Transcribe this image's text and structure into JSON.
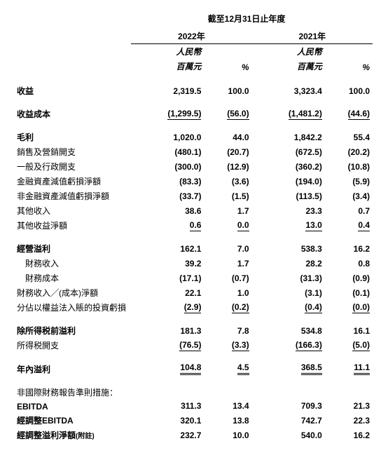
{
  "header": {
    "period_title": "截至12月31日止年度",
    "years": [
      "2022年",
      "2021年"
    ],
    "unit_currency": "人民幣",
    "unit_amount": "百萬元",
    "pct_symbol": "%"
  },
  "rows": [
    {
      "type": "data",
      "label": "收益",
      "bold": true,
      "v1": "2,319.5",
      "p1": "100.0",
      "v2": "3,323.4",
      "p2": "100.0",
      "bottomGap": true
    },
    {
      "type": "data",
      "label": "收益成本",
      "bold": true,
      "v1": "(1,299.5)",
      "p1": "(56.0)",
      "v2": "(1,481.2)",
      "p2": "(44.6)",
      "underline": true,
      "bottomGap": true
    },
    {
      "type": "data",
      "label": "毛利",
      "bold": true,
      "v1": "1,020.0",
      "p1": "44.0",
      "v2": "1,842.2",
      "p2": "55.4"
    },
    {
      "type": "data",
      "label": "銷售及營銷開支",
      "v1": "(480.1)",
      "p1": "(20.7)",
      "v2": "(672.5)",
      "p2": "(20.2)"
    },
    {
      "type": "data",
      "label": "一般及行政開支",
      "v1": "(300.0)",
      "p1": "(12.9)",
      "v2": "(360.2)",
      "p2": "(10.8)"
    },
    {
      "type": "data",
      "label": "金融資產減值虧損淨額",
      "v1": "(83.3)",
      "p1": "(3.6)",
      "v2": "(194.0)",
      "p2": "(5.9)"
    },
    {
      "type": "data",
      "label": "非金融資產減值虧損淨額",
      "v1": "(33.7)",
      "p1": "(1.5)",
      "v2": "(113.5)",
      "p2": "(3.4)"
    },
    {
      "type": "data",
      "label": "其他收入",
      "v1": "38.6",
      "p1": "1.7",
      "v2": "23.3",
      "p2": "0.7"
    },
    {
      "type": "data",
      "label": "其他收益淨額",
      "v1": "0.6",
      "p1": "0.0",
      "v2": "13.0",
      "p2": "0.4",
      "underline": true,
      "bottomGap": true
    },
    {
      "type": "data",
      "label": "經營溢利",
      "bold": true,
      "v1": "162.1",
      "p1": "7.0",
      "v2": "538.3",
      "p2": "16.2"
    },
    {
      "type": "data",
      "label": "　財務收入",
      "v1": "39.2",
      "p1": "1.7",
      "v2": "28.2",
      "p2": "0.8"
    },
    {
      "type": "data",
      "label": "　財務成本",
      "v1": "(17.1)",
      "p1": "(0.7)",
      "v2": "(31.3)",
      "p2": "(0.9)"
    },
    {
      "type": "data",
      "label": "財務收入╱(成本)淨額",
      "v1": "22.1",
      "p1": "1.0",
      "v2": "(3.1)",
      "p2": "(0.1)"
    },
    {
      "type": "data",
      "label": "分佔以權益法入賬的投資虧損",
      "v1": "(2.9)",
      "p1": "(0.2)",
      "v2": "(0.4)",
      "p2": "(0.0)",
      "underline": true,
      "bottomGap": true
    },
    {
      "type": "data",
      "label": "除所得税前溢利",
      "bold": true,
      "v1": "181.3",
      "p1": "7.8",
      "v2": "534.8",
      "p2": "16.1"
    },
    {
      "type": "data",
      "label": "所得税開支",
      "v1": "(76.5)",
      "p1": "(3.3)",
      "v2": "(166.3)",
      "p2": "(5.0)",
      "underline": true,
      "bottomGap": true
    },
    {
      "type": "data",
      "label": "年內溢利",
      "bold": true,
      "v1": "104.8",
      "p1": "4.5",
      "v2": "368.5",
      "p2": "11.1",
      "doubleUnderline": true,
      "bottomGap": true
    },
    {
      "type": "label_only",
      "label": "非國際財務報告準則措施："
    },
    {
      "type": "data",
      "label": "EBITDA",
      "bold": true,
      "v1": "311.3",
      "p1": "13.4",
      "v2": "709.3",
      "p2": "21.3"
    },
    {
      "type": "data",
      "label": "經調整EBITDA",
      "bold": true,
      "v1": "320.1",
      "p1": "13.8",
      "v2": "742.7",
      "p2": "22.3"
    },
    {
      "type": "data_note",
      "label": "經調整溢利淨額",
      "note": "(附註)",
      "bold": true,
      "v1": "232.7",
      "p1": "10.0",
      "v2": "540.0",
      "p2": "16.2"
    }
  ],
  "style": {
    "text_color": "#000000",
    "background_color": "#ffffff",
    "font_size_pt": 12,
    "bold_weight": 700,
    "underline_color": "#000000"
  }
}
